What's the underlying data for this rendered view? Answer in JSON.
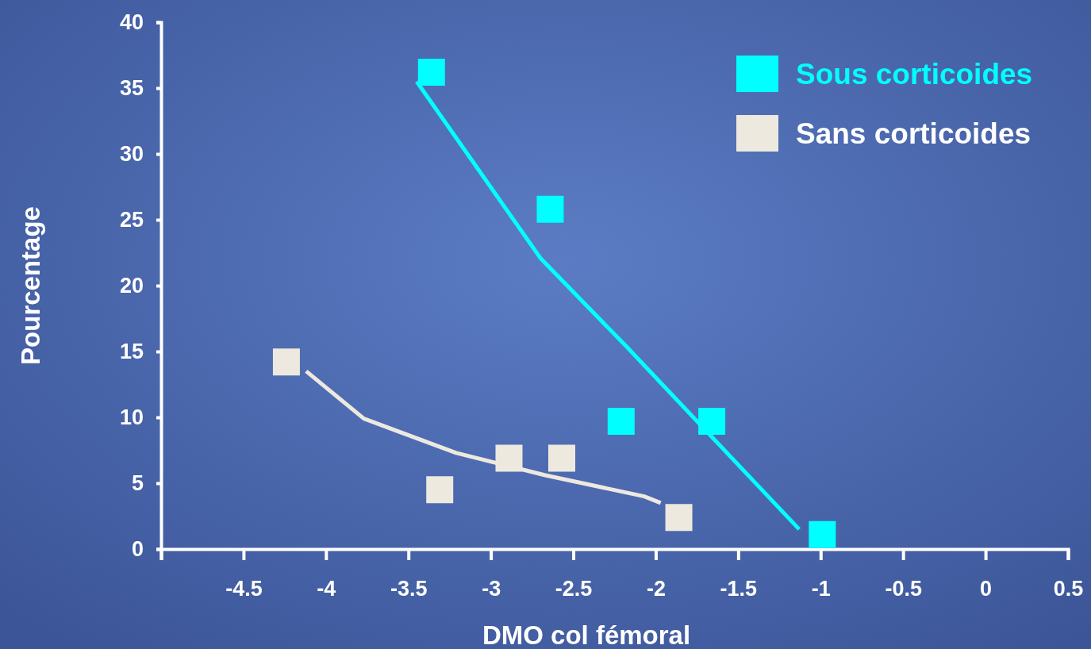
{
  "chart_data": {
    "type": "scatter",
    "xlabel": "DMO col fémoral",
    "ylabel": "Pourcentage",
    "xlim": [
      -5,
      0.5
    ],
    "xticks": [
      {
        "value": -5,
        "label": null
      },
      -4.5,
      -4,
      -3.5,
      -3,
      -2.5,
      -2,
      -1.5,
      -1,
      -0.5,
      0,
      0.5
    ],
    "ylim": [
      0,
      40
    ],
    "yticks": [
      0,
      5,
      10,
      15,
      20,
      25,
      30,
      35,
      40
    ],
    "grid": false,
    "legend": "top right",
    "marker": "square",
    "series": [
      {
        "name": "Sous corticoides",
        "color": "#00ffff",
        "x": [
          -3.36,
          -2.64,
          -2.21,
          -1.66,
          -0.99
        ],
        "values": [
          36.2,
          25.8,
          9.7,
          9.7,
          1.1
        ]
      },
      {
        "name": "Sans corticoides",
        "color": "#ede9df",
        "x": [
          -4.24,
          -3.31,
          -2.89,
          -2.57,
          -1.86
        ],
        "values": [
          14.2,
          4.5,
          6.9,
          6.9,
          2.4
        ]
      },
      {
        "type": "line",
        "color": "#00ffff",
        "marker": "none",
        "line_style": "solid",
        "x": [
          -3.45,
          -2.7,
          -2.18,
          -1.13
        ],
        "values": [
          35.5,
          22.1,
          15.4,
          1.5
        ]
      },
      {
        "type": "line",
        "color": "#ede9df",
        "marker": "none",
        "line_style": "solid",
        "x": [
          -4.12,
          -3.77,
          -3.21,
          -2.67,
          -2.07,
          -1.97
        ],
        "values": [
          13.5,
          9.9,
          7.3,
          5.6,
          4.0,
          3.5
        ]
      }
    ]
  }
}
